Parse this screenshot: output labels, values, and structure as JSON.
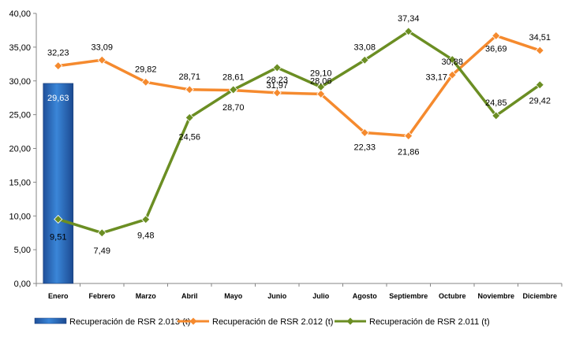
{
  "chart_data": {
    "type": "bar+line",
    "categories": [
      "Enero",
      "Febrero",
      "Marzo",
      "Abril",
      "Mayo",
      "Junio",
      "Julio",
      "Agosto",
      "Septiembre",
      "Octubre",
      "Noviembre",
      "Diciembre"
    ],
    "series": [
      {
        "name": "Recuperación de RSR 2.013 (t)",
        "type": "bar",
        "color": "#2e6fc4",
        "values": [
          29.63,
          null,
          null,
          null,
          null,
          null,
          null,
          null,
          null,
          null,
          null,
          null
        ],
        "labels": [
          "29,63",
          null,
          null,
          null,
          null,
          null,
          null,
          null,
          null,
          null,
          null,
          null
        ]
      },
      {
        "name": "Recuperación de RSR 2.012 (t)",
        "type": "line",
        "color": "#f58a2e",
        "values": [
          32.23,
          33.09,
          29.82,
          28.71,
          28.61,
          28.23,
          28.06,
          22.33,
          21.86,
          30.88,
          36.69,
          34.51
        ],
        "labels": [
          "32,23",
          "33,09",
          "29,82",
          "28,71",
          "28,61",
          "28,23",
          "28,06",
          "22,33",
          "21,86",
          "30,88",
          "36,69",
          "34,51"
        ]
      },
      {
        "name": "Recuperación de RSR 2.011 (t)",
        "type": "line",
        "color": "#6b8e23",
        "values": [
          9.51,
          7.49,
          9.48,
          24.56,
          28.7,
          31.97,
          29.1,
          33.08,
          37.34,
          33.17,
          24.85,
          29.42
        ],
        "labels": [
          "9,51",
          "7,49",
          "9,48",
          "24,56",
          "28,70",
          "31,97",
          "29,10",
          "33,08",
          "37,34",
          "33,17",
          "24,85",
          "29,42"
        ]
      }
    ],
    "ylim": [
      0,
      40
    ],
    "yticks": [
      "0,00",
      "5,00",
      "10,00",
      "15,00",
      "20,00",
      "25,00",
      "30,00",
      "35,00",
      "40,00"
    ],
    "grid": false,
    "legend": "bottom"
  }
}
